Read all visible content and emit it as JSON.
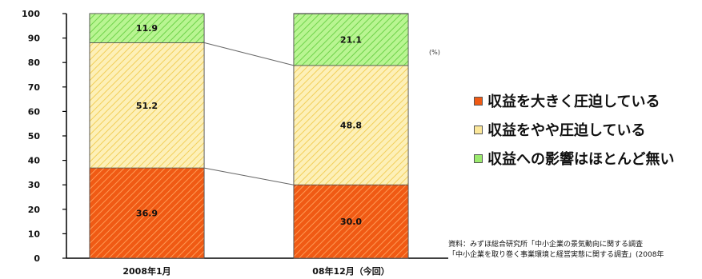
{
  "chart_data": {
    "type": "bar",
    "stacked": true,
    "categories": [
      "2008年1月",
      "08年12月（今回）"
    ],
    "series": [
      {
        "name": "収益を大きく圧迫している",
        "values": [
          36.9,
          30.0
        ],
        "labels": [
          "36.9",
          "30.0"
        ],
        "color": "#f05a14"
      },
      {
        "name": "収益をやや圧迫している",
        "values": [
          51.2,
          48.8
        ],
        "labels": [
          "51.2",
          "48.8"
        ],
        "color": "#fbe79a"
      },
      {
        "name": "収益への影響はほとんど無い",
        "values": [
          11.9,
          21.1
        ],
        "labels": [
          "11.9",
          "21.1"
        ],
        "color": "#9bea6e"
      }
    ],
    "ylim": [
      0,
      100
    ],
    "yticks": [
      "0",
      "10",
      "20",
      "30",
      "40",
      "50",
      "60",
      "70",
      "80",
      "90",
      "100"
    ],
    "unit": "(%)",
    "legend_position": "right",
    "grid": false
  },
  "source": {
    "line1": "資料：みずほ総合研究所「中小企業の景気動向に関する調査",
    "line2": "「中小企業を取り巻く事業環境と経営実態に関する調査」(2008年"
  }
}
